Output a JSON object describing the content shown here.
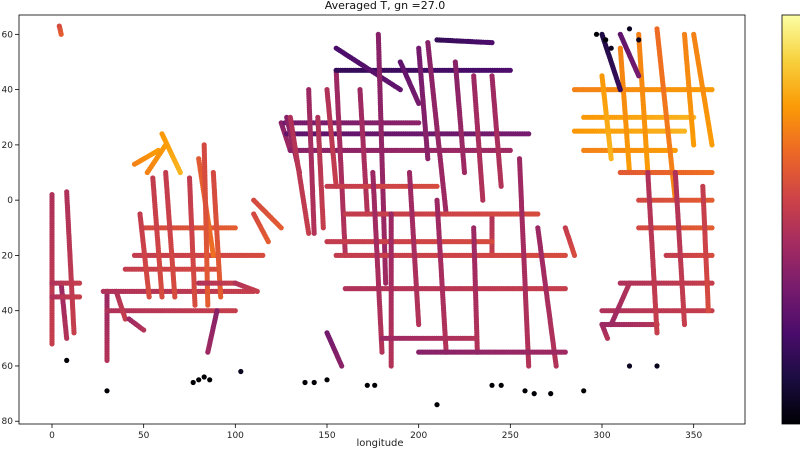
{
  "chart_data": {
    "type": "scatter",
    "title": "Averaged T, gn =27.0",
    "xlabel": "longitude",
    "ylabel": "",
    "xlim": [
      -18,
      378
    ],
    "ylim": [
      -81,
      67
    ],
    "xticks": [
      0,
      50,
      100,
      150,
      200,
      250,
      300,
      350
    ],
    "yticks": [
      -80,
      -60,
      -40,
      -20,
      0,
      20,
      40,
      60
    ],
    "ytick_labels": [
      "80",
      "60",
      "40",
      "20",
      "0",
      "20",
      "40",
      "60"
    ],
    "grid": false,
    "legend": "none",
    "colormap": "inferno",
    "colormap_stops": [
      "#000004",
      "#1b0c41",
      "#4a0c6b",
      "#781c6d",
      "#a52c60",
      "#cf4446",
      "#ed6925",
      "#fb9b06",
      "#f7d13d",
      "#fcffa4"
    ],
    "marker_color_value_range": [
      0,
      1
    ],
    "tracks": [
      {
        "x": [
          0,
          0
        ],
        "y": [
          2,
          -52
        ],
        "c": 0.5
      },
      {
        "x": [
          5,
          8
        ],
        "y": [
          -30,
          -50
        ],
        "c": 0.45
      },
      {
        "x": [
          8,
          12
        ],
        "y": [
          3,
          -48
        ],
        "c": 0.5
      },
      {
        "x": [
          0,
          15
        ],
        "y": [
          -30,
          -30
        ],
        "c": 0.5
      },
      {
        "x": [
          0,
          15
        ],
        "y": [
          -35,
          -35
        ],
        "c": 0.5
      },
      {
        "x": [
          4,
          5
        ],
        "y": [
          63,
          60
        ],
        "c": 0.6
      },
      {
        "x": [
          30,
          30
        ],
        "y": [
          -33,
          -58
        ],
        "c": 0.45
      },
      {
        "x": [
          28,
          110
        ],
        "y": [
          -33,
          -33
        ],
        "c": 0.5
      },
      {
        "x": [
          30,
          100
        ],
        "y": [
          -40,
          -40
        ],
        "c": 0.5
      },
      {
        "x": [
          35,
          40
        ],
        "y": [
          -33,
          -43
        ],
        "c": 0.5
      },
      {
        "x": [
          42,
          50
        ],
        "y": [
          -43,
          -47
        ],
        "c": 0.45
      },
      {
        "x": [
          40,
          90
        ],
        "y": [
          -25,
          -25
        ],
        "c": 0.55
      },
      {
        "x": [
          50,
          100
        ],
        "y": [
          -10,
          -10
        ],
        "c": 0.6
      },
      {
        "x": [
          45,
          115
        ],
        "y": [
          -20,
          -20
        ],
        "c": 0.55
      },
      {
        "x": [
          48,
          53
        ],
        "y": [
          -5,
          -35
        ],
        "c": 0.55
      },
      {
        "x": [
          55,
          60
        ],
        "y": [
          8,
          -35
        ],
        "c": 0.55
      },
      {
        "x": [
          60,
          70
        ],
        "y": [
          24,
          10
        ],
        "c": 0.8
      },
      {
        "x": [
          45,
          58
        ],
        "y": [
          13,
          18
        ],
        "c": 0.75
      },
      {
        "x": [
          52,
          62
        ],
        "y": [
          10,
          20
        ],
        "c": 0.75
      },
      {
        "x": [
          62,
          67
        ],
        "y": [
          10,
          -35
        ],
        "c": 0.55
      },
      {
        "x": [
          75,
          78
        ],
        "y": [
          8,
          -38
        ],
        "c": 0.55
      },
      {
        "x": [
          80,
          88
        ],
        "y": [
          15,
          -20
        ],
        "c": 0.65
      },
      {
        "x": [
          83,
          85
        ],
        "y": [
          20,
          -38
        ],
        "c": 0.6
      },
      {
        "x": [
          88,
          92
        ],
        "y": [
          10,
          -35
        ],
        "c": 0.6
      },
      {
        "x": [
          90,
          85
        ],
        "y": [
          -40,
          -55
        ],
        "c": 0.4
      },
      {
        "x": [
          80,
          100
        ],
        "y": [
          -30,
          -30
        ],
        "c": 0.5
      },
      {
        "x": [
          100,
          112
        ],
        "y": [
          -30,
          -33
        ],
        "c": 0.5
      },
      {
        "x": [
          110,
          118
        ],
        "y": [
          -5,
          -15
        ],
        "c": 0.6
      },
      {
        "x": [
          110,
          125
        ],
        "y": [
          0,
          -10
        ],
        "c": 0.6
      },
      {
        "x": [
          125,
          130
        ],
        "y": [
          28,
          18
        ],
        "c": 0.4
      },
      {
        "x": [
          127,
          200
        ],
        "y": [
          28,
          28
        ],
        "c": 0.35
      },
      {
        "x": [
          128,
          260
        ],
        "y": [
          24,
          24
        ],
        "c": 0.3
      },
      {
        "x": [
          130,
          250
        ],
        "y": [
          18,
          18
        ],
        "c": 0.4
      },
      {
        "x": [
          128,
          135
        ],
        "y": [
          30,
          10
        ],
        "c": 0.4
      },
      {
        "x": [
          130,
          140
        ],
        "y": [
          30,
          -12
        ],
        "c": 0.5
      },
      {
        "x": [
          140,
          143
        ],
        "y": [
          40,
          -12
        ],
        "c": 0.45
      },
      {
        "x": [
          145,
          148
        ],
        "y": [
          30,
          -10
        ],
        "c": 0.5
      },
      {
        "x": [
          150,
          155
        ],
        "y": [
          40,
          5
        ],
        "c": 0.5
      },
      {
        "x": [
          155,
          160
        ],
        "y": [
          47,
          -20
        ],
        "c": 0.45
      },
      {
        "x": [
          155,
          250
        ],
        "y": [
          47,
          47
        ],
        "c": 0.2
      },
      {
        "x": [
          155,
          190
        ],
        "y": [
          55,
          40
        ],
        "c": 0.25
      },
      {
        "x": [
          168,
          172
        ],
        "y": [
          40,
          -5
        ],
        "c": 0.45
      },
      {
        "x": [
          178,
          182
        ],
        "y": [
          60,
          -30
        ],
        "c": 0.4
      },
      {
        "x": [
          190,
          200
        ],
        "y": [
          50,
          35
        ],
        "c": 0.3
      },
      {
        "x": [
          200,
          205
        ],
        "y": [
          55,
          15
        ],
        "c": 0.35
      },
      {
        "x": [
          205,
          215
        ],
        "y": [
          57,
          -5
        ],
        "c": 0.4
      },
      {
        "x": [
          210,
          240
        ],
        "y": [
          58,
          57
        ],
        "c": 0.2
      },
      {
        "x": [
          220,
          225
        ],
        "y": [
          50,
          10
        ],
        "c": 0.4
      },
      {
        "x": [
          230,
          235
        ],
        "y": [
          45,
          0
        ],
        "c": 0.45
      },
      {
        "x": [
          240,
          245
        ],
        "y": [
          45,
          5
        ],
        "c": 0.45
      },
      {
        "x": [
          240,
          240
        ],
        "y": [
          -5,
          -20
        ],
        "c": 0.5
      },
      {
        "x": [
          150,
          210
        ],
        "y": [
          5,
          5
        ],
        "c": 0.55
      },
      {
        "x": [
          160,
          265
        ],
        "y": [
          -5,
          -5
        ],
        "c": 0.55
      },
      {
        "x": [
          150,
          240
        ],
        "y": [
          -15,
          -15
        ],
        "c": 0.55
      },
      {
        "x": [
          155,
          280
        ],
        "y": [
          -20,
          -20
        ],
        "c": 0.55
      },
      {
        "x": [
          160,
          280
        ],
        "y": [
          -32,
          -32
        ],
        "c": 0.5
      },
      {
        "x": [
          175,
          180
        ],
        "y": [
          10,
          -55
        ],
        "c": 0.45
      },
      {
        "x": [
          185,
          185
        ],
        "y": [
          -5,
          -60
        ],
        "c": 0.45
      },
      {
        "x": [
          195,
          200
        ],
        "y": [
          10,
          -45
        ],
        "c": 0.45
      },
      {
        "x": [
          210,
          215
        ],
        "y": [
          0,
          -55
        ],
        "c": 0.45
      },
      {
        "x": [
          230,
          232
        ],
        "y": [
          -10,
          -55
        ],
        "c": 0.45
      },
      {
        "x": [
          255,
          260
        ],
        "y": [
          15,
          -60
        ],
        "c": 0.45
      },
      {
        "x": [
          265,
          275
        ],
        "y": [
          -10,
          -60
        ],
        "c": 0.45
      },
      {
        "x": [
          280,
          285
        ],
        "y": [
          -10,
          -20
        ],
        "c": 0.55
      },
      {
        "x": [
          150,
          158
        ],
        "y": [
          -48,
          -60
        ],
        "c": 0.35
      },
      {
        "x": [
          200,
          280
        ],
        "y": [
          -55,
          -55
        ],
        "c": 0.4
      },
      {
        "x": [
          180,
          230
        ],
        "y": [
          -50,
          -50
        ],
        "c": 0.45
      },
      {
        "x": [
          285,
          360
        ],
        "y": [
          40,
          40
        ],
        "c": 0.75
      },
      {
        "x": [
          290,
          350
        ],
        "y": [
          30,
          30
        ],
        "c": 0.8
      },
      {
        "x": [
          285,
          345
        ],
        "y": [
          25,
          25
        ],
        "c": 0.8
      },
      {
        "x": [
          290,
          340
        ],
        "y": [
          18,
          18
        ],
        "c": 0.75
      },
      {
        "x": [
          300,
          305
        ],
        "y": [
          45,
          15
        ],
        "c": 0.8
      },
      {
        "x": [
          310,
          315
        ],
        "y": [
          55,
          10
        ],
        "c": 0.75
      },
      {
        "x": [
          320,
          325
        ],
        "y": [
          60,
          10
        ],
        "c": 0.75
      },
      {
        "x": [
          330,
          340
        ],
        "y": [
          62,
          0
        ],
        "c": 0.7
      },
      {
        "x": [
          345,
          350
        ],
        "y": [
          60,
          20
        ],
        "c": 0.75
      },
      {
        "x": [
          350,
          360
        ],
        "y": [
          60,
          20
        ],
        "c": 0.75
      },
      {
        "x": [
          310,
          360
        ],
        "y": [
          10,
          10
        ],
        "c": 0.65
      },
      {
        "x": [
          320,
          360
        ],
        "y": [
          0,
          0
        ],
        "c": 0.6
      },
      {
        "x": [
          320,
          360
        ],
        "y": [
          -10,
          -10
        ],
        "c": 0.6
      },
      {
        "x": [
          335,
          360
        ],
        "y": [
          -20,
          -20
        ],
        "c": 0.55
      },
      {
        "x": [
          310,
          360
        ],
        "y": [
          -30,
          -30
        ],
        "c": 0.5
      },
      {
        "x": [
          300,
          360
        ],
        "y": [
          -40,
          -40
        ],
        "c": 0.5
      },
      {
        "x": [
          300,
          330
        ],
        "y": [
          -45,
          -45
        ],
        "c": 0.45
      },
      {
        "x": [
          325,
          330
        ],
        "y": [
          10,
          -48
        ],
        "c": 0.5
      },
      {
        "x": [
          340,
          345
        ],
        "y": [
          10,
          -45
        ],
        "c": 0.5
      },
      {
        "x": [
          355,
          358
        ],
        "y": [
          5,
          -40
        ],
        "c": 0.55
      },
      {
        "x": [
          305,
          315
        ],
        "y": [
          -45,
          -30
        ],
        "c": 0.45
      },
      {
        "x": [
          300,
          303
        ],
        "y": [
          -45,
          -50
        ],
        "c": 0.45
      },
      {
        "x": [
          300,
          310
        ],
        "y": [
          60,
          40
        ],
        "c": 0.15
      },
      {
        "x": [
          310,
          320
        ],
        "y": [
          60,
          45
        ],
        "c": 0.3
      }
    ],
    "isolated_points": [
      {
        "x": 8,
        "y": -58,
        "c": 0.0
      },
      {
        "x": 30,
        "y": -69,
        "c": 0.0
      },
      {
        "x": 77,
        "y": -66,
        "c": 0.0
      },
      {
        "x": 80,
        "y": -65,
        "c": 0.0
      },
      {
        "x": 83,
        "y": -64,
        "c": 0.0
      },
      {
        "x": 86,
        "y": -65,
        "c": 0.0
      },
      {
        "x": 103,
        "y": -62,
        "c": 0.05
      },
      {
        "x": 138,
        "y": -66,
        "c": 0.0
      },
      {
        "x": 143,
        "y": -66,
        "c": 0.0
      },
      {
        "x": 150,
        "y": -65,
        "c": 0.0
      },
      {
        "x": 172,
        "y": -67,
        "c": 0.0
      },
      {
        "x": 176,
        "y": -67,
        "c": 0.0
      },
      {
        "x": 210,
        "y": -74,
        "c": 0.0
      },
      {
        "x": 240,
        "y": -67,
        "c": 0.0
      },
      {
        "x": 245,
        "y": -67,
        "c": 0.0
      },
      {
        "x": 258,
        "y": -69,
        "c": 0.0
      },
      {
        "x": 263,
        "y": -70,
        "c": 0.0
      },
      {
        "x": 272,
        "y": -70,
        "c": 0.0
      },
      {
        "x": 290,
        "y": -69,
        "c": 0.0
      },
      {
        "x": 315,
        "y": -60,
        "c": 0.05
      },
      {
        "x": 330,
        "y": -60,
        "c": 0.05
      },
      {
        "x": 297,
        "y": 60,
        "c": 0.0
      },
      {
        "x": 302,
        "y": 58,
        "c": 0.0
      },
      {
        "x": 305,
        "y": 55,
        "c": 0.05
      },
      {
        "x": 315,
        "y": 62,
        "c": 0.05
      },
      {
        "x": 320,
        "y": 58,
        "c": 0.05
      }
    ]
  }
}
